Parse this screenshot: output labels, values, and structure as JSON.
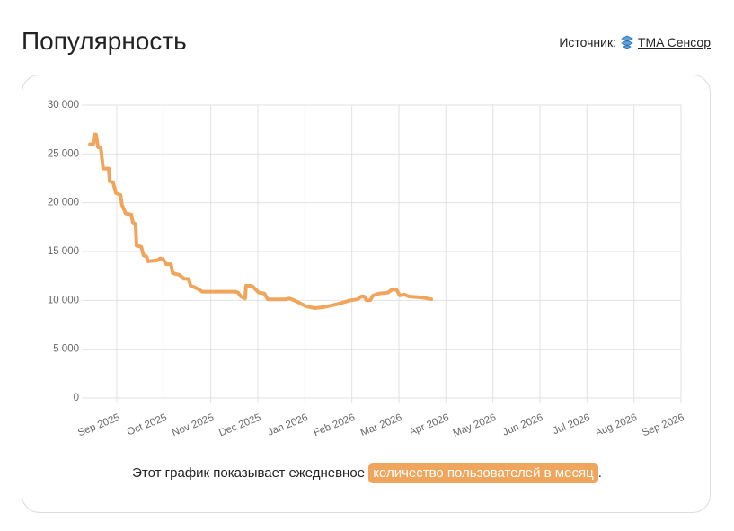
{
  "title": "Популярность",
  "source_label": "Источник:",
  "source_link": "TMA Сенсор",
  "caption_before": "Этот график показывает ежедневное",
  "caption_highlight": "количество пользователей в месяц",
  "caption_after": ".",
  "chart_data": {
    "type": "line",
    "x": [
      -0.57,
      -0.5,
      -0.48,
      -0.44,
      -0.4,
      -0.34,
      -0.29,
      -0.17,
      -0.15,
      -0.08,
      -0.02,
      0.08,
      0.11,
      0.19,
      0.31,
      0.34,
      0.4,
      0.42,
      0.52,
      0.57,
      0.63,
      0.67,
      0.86,
      0.92,
      0.99,
      1.05,
      1.15,
      1.19,
      1.34,
      1.43,
      1.53,
      1.57,
      1.68,
      1.82,
      2.52,
      2.58,
      2.64,
      2.73,
      2.75,
      2.87,
      2.94,
      3.02,
      3.14,
      3.21,
      3.59,
      3.67,
      3.82,
      4.02,
      4.21,
      4.4,
      4.68,
      4.97,
      5.12,
      5.2,
      5.26,
      5.31,
      5.39,
      5.45,
      5.58,
      5.77,
      5.85,
      5.95,
      6.02,
      6.12,
      6.21,
      6.5,
      6.69
    ],
    "values": [
      26000,
      26000,
      27000,
      27000,
      25700,
      25600,
      23500,
      23500,
      22200,
      22100,
      21000,
      20800,
      19800,
      18900,
      18800,
      18000,
      17800,
      15600,
      15500,
      14600,
      14500,
      14000,
      14100,
      14300,
      14200,
      13700,
      13700,
      12800,
      12600,
      12200,
      12200,
      11500,
      11300,
      10900,
      10900,
      10800,
      10400,
      10200,
      11500,
      11500,
      11200,
      10800,
      10700,
      10100,
      10100,
      10200,
      9900,
      9400,
      9200,
      9300,
      9600,
      10000,
      10100,
      10400,
      10400,
      10000,
      10000,
      10500,
      10700,
      10800,
      11100,
      11100,
      10500,
      10600,
      10400,
      10300,
      10100
    ],
    "color": "#efa55b",
    "xlim": [
      -0.63,
      12
    ],
    "xticks": [
      {
        "value": 0,
        "label": "Sep 2025"
      },
      {
        "value": 1,
        "label": "Oct 2025"
      },
      {
        "value": 2,
        "label": "Nov 2025"
      },
      {
        "value": 3,
        "label": "Dec 2025"
      },
      {
        "value": 4,
        "label": "Jan 2026"
      },
      {
        "value": 5,
        "label": "Feb 2026"
      },
      {
        "value": 6,
        "label": "Mar 2026"
      },
      {
        "value": 7,
        "label": "Apr 2026"
      },
      {
        "value": 8,
        "label": "May 2026"
      },
      {
        "value": 9,
        "label": "Jun 2026"
      },
      {
        "value": 10,
        "label": "Jul 2026"
      },
      {
        "value": 11,
        "label": "Aug 2026"
      },
      {
        "value": 12,
        "label": "Sep 2026"
      }
    ],
    "ylim": [
      0,
      30000
    ],
    "yticks": [
      0,
      {
        "value": 5000,
        "label": "5 000"
      },
      {
        "value": 10000,
        "label": "10 000"
      },
      {
        "value": 15000,
        "label": "15 000"
      },
      {
        "value": 20000,
        "label": "20 000"
      },
      {
        "value": 25000,
        "label": "25 000"
      },
      {
        "value": 30000,
        "label": "30 000"
      }
    ],
    "grid": true
  }
}
